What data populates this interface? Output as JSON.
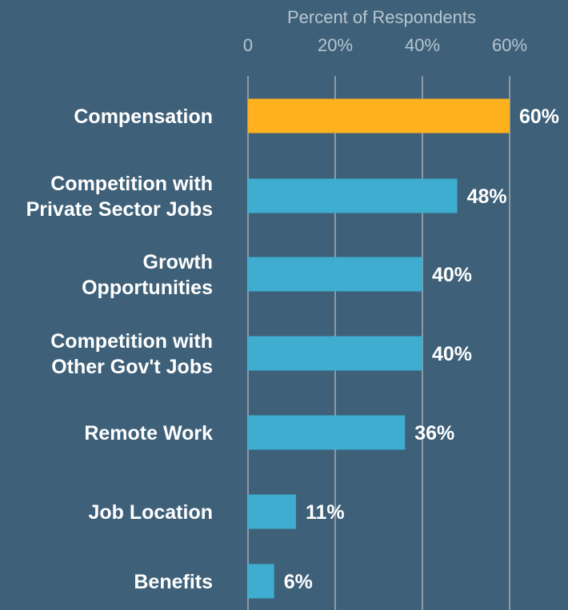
{
  "chart_data": {
    "type": "bar",
    "orientation": "horizontal",
    "title": "",
    "xlabel": "Percent of Respondents",
    "ylabel": "",
    "xlim": [
      0,
      60
    ],
    "x_ticks": [
      "0",
      "20%",
      "40%",
      "60%"
    ],
    "x_tick_values": [
      0,
      20,
      40,
      60
    ],
    "x_axis_position": "top",
    "grid": true,
    "categories": [
      "Compensation",
      "Competition with Private Sector Jobs",
      "Growth Opportunities",
      "Competition with Other Gov't Jobs",
      "Remote Work",
      "Job Location",
      "Benefits"
    ],
    "category_label_lines": [
      [
        "Compensation"
      ],
      [
        "Competition with",
        "Private Sector Jobs"
      ],
      [
        "Growth",
        "Opportunities"
      ],
      [
        "Competition with",
        "Other Gov't Jobs"
      ],
      [
        "Remote Work"
      ],
      [
        "Job Location"
      ],
      [
        "Benefits"
      ]
    ],
    "values": [
      60,
      48,
      40,
      40,
      36,
      11,
      6
    ],
    "data_labels": [
      "60%",
      "48%",
      "40%",
      "40%",
      "36%",
      "11%",
      "6%"
    ],
    "highlight_index": 0,
    "colors": {
      "background": "#3e6079",
      "highlight_bar": "#fdb11c",
      "bar": "#3eadcf",
      "gridline": "#8d9aa5",
      "axis_text": "#b7c5d0",
      "label_text": "#ffffff"
    }
  }
}
